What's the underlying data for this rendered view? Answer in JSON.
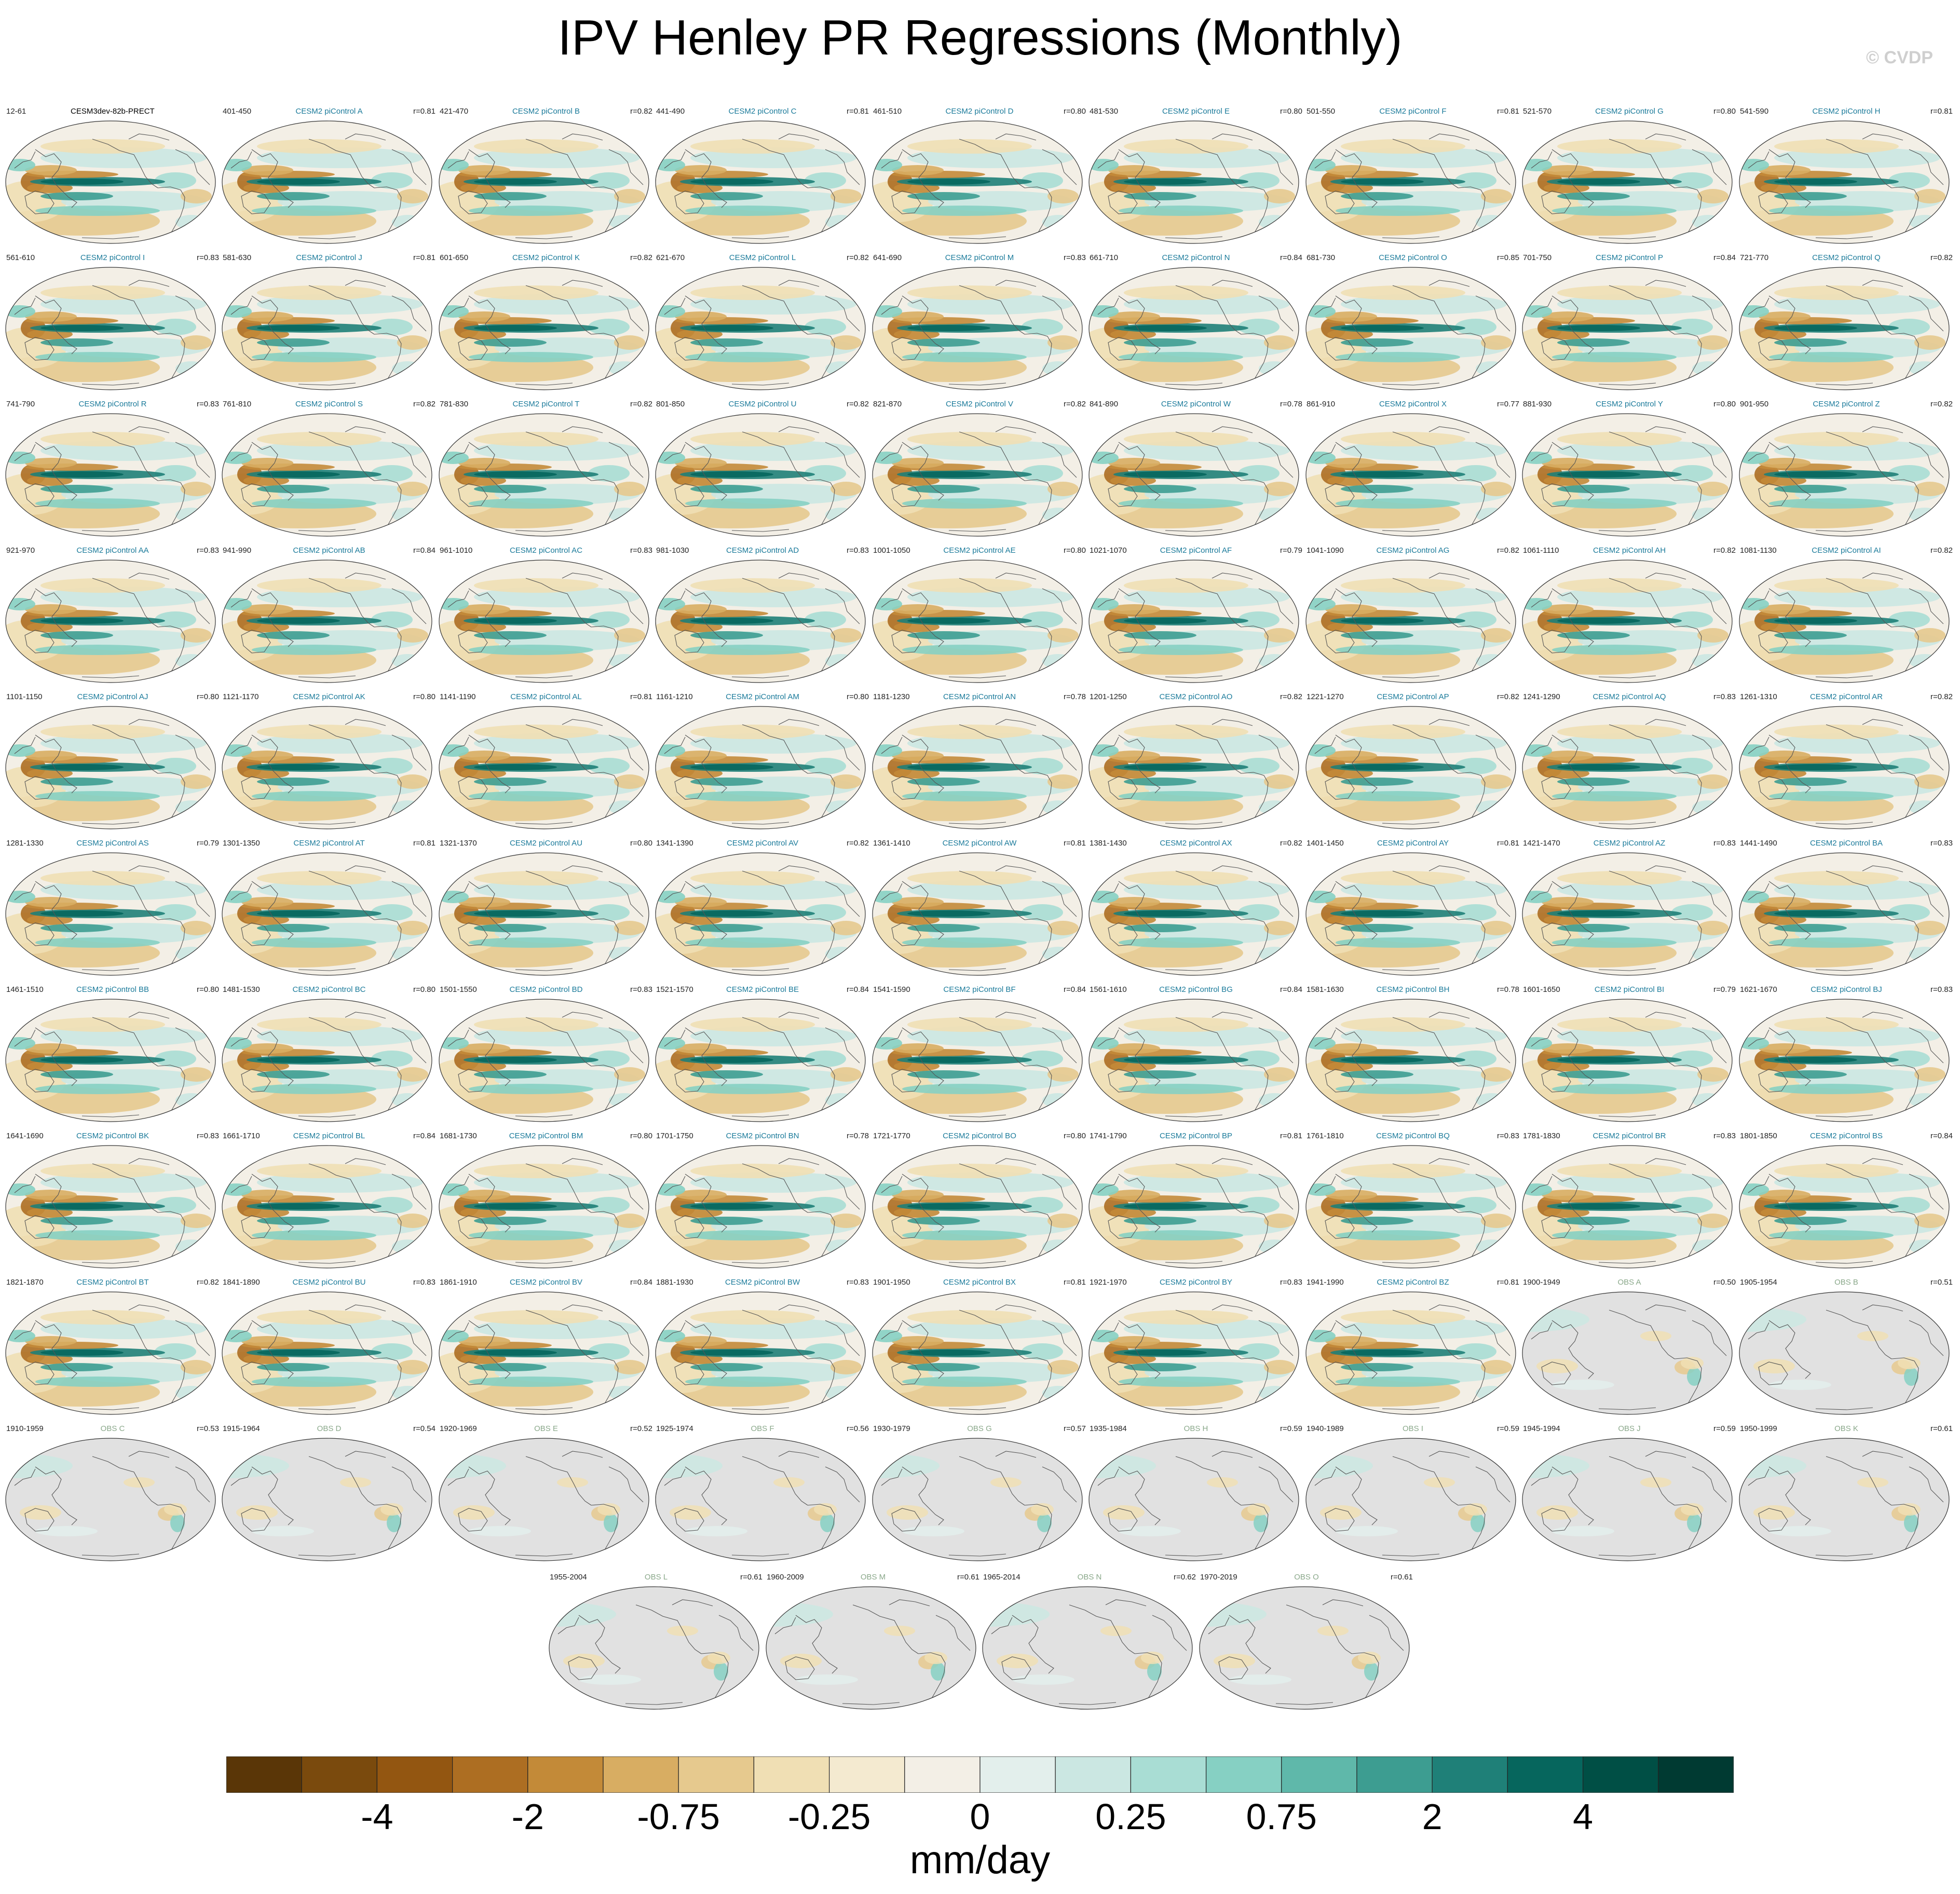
{
  "title": "IPV Henley PR Regressions (Monthly)",
  "copyright": "© CVDP",
  "panels": [
    {
      "name": "CESM3dev-82b-PRECT",
      "years": "12-61",
      "r": "",
      "kind": "base"
    },
    {
      "name": "CESM2 piControl A",
      "years": "401-450",
      "r": "r=0.81",
      "kind": "model"
    },
    {
      "name": "CESM2 piControl B",
      "years": "421-470",
      "r": "r=0.82",
      "kind": "model"
    },
    {
      "name": "CESM2 piControl C",
      "years": "441-490",
      "r": "r=0.81",
      "kind": "model"
    },
    {
      "name": "CESM2 piControl D",
      "years": "461-510",
      "r": "r=0.80",
      "kind": "model"
    },
    {
      "name": "CESM2 piControl E",
      "years": "481-530",
      "r": "r=0.80",
      "kind": "model"
    },
    {
      "name": "CESM2 piControl F",
      "years": "501-550",
      "r": "r=0.81",
      "kind": "model"
    },
    {
      "name": "CESM2 piControl G",
      "years": "521-570",
      "r": "r=0.80",
      "kind": "model"
    },
    {
      "name": "CESM2 piControl H",
      "years": "541-590",
      "r": "r=0.81",
      "kind": "model"
    },
    {
      "name": "CESM2 piControl I",
      "years": "561-610",
      "r": "r=0.83",
      "kind": "model"
    },
    {
      "name": "CESM2 piControl J",
      "years": "581-630",
      "r": "r=0.81",
      "kind": "model"
    },
    {
      "name": "CESM2 piControl K",
      "years": "601-650",
      "r": "r=0.82",
      "kind": "model"
    },
    {
      "name": "CESM2 piControl L",
      "years": "621-670",
      "r": "r=0.82",
      "kind": "model"
    },
    {
      "name": "CESM2 piControl M",
      "years": "641-690",
      "r": "r=0.83",
      "kind": "model"
    },
    {
      "name": "CESM2 piControl N",
      "years": "661-710",
      "r": "r=0.84",
      "kind": "model"
    },
    {
      "name": "CESM2 piControl O",
      "years": "681-730",
      "r": "r=0.85",
      "kind": "model"
    },
    {
      "name": "CESM2 piControl P",
      "years": "701-750",
      "r": "r=0.84",
      "kind": "model"
    },
    {
      "name": "CESM2 piControl Q",
      "years": "721-770",
      "r": "r=0.82",
      "kind": "model"
    },
    {
      "name": "CESM2 piControl R",
      "years": "741-790",
      "r": "r=0.83",
      "kind": "model"
    },
    {
      "name": "CESM2 piControl S",
      "years": "761-810",
      "r": "r=0.82",
      "kind": "model"
    },
    {
      "name": "CESM2 piControl T",
      "years": "781-830",
      "r": "r=0.82",
      "kind": "model"
    },
    {
      "name": "CESM2 piControl U",
      "years": "801-850",
      "r": "r=0.82",
      "kind": "model"
    },
    {
      "name": "CESM2 piControl V",
      "years": "821-870",
      "r": "r=0.82",
      "kind": "model"
    },
    {
      "name": "CESM2 piControl W",
      "years": "841-890",
      "r": "r=0.78",
      "kind": "model"
    },
    {
      "name": "CESM2 piControl X",
      "years": "861-910",
      "r": "r=0.77",
      "kind": "model"
    },
    {
      "name": "CESM2 piControl Y",
      "years": "881-930",
      "r": "r=0.80",
      "kind": "model"
    },
    {
      "name": "CESM2 piControl Z",
      "years": "901-950",
      "r": "r=0.82",
      "kind": "model"
    },
    {
      "name": "CESM2 piControl AA",
      "years": "921-970",
      "r": "r=0.83",
      "kind": "model"
    },
    {
      "name": "CESM2 piControl AB",
      "years": "941-990",
      "r": "r=0.84",
      "kind": "model"
    },
    {
      "name": "CESM2 piControl AC",
      "years": "961-1010",
      "r": "r=0.83",
      "kind": "model"
    },
    {
      "name": "CESM2 piControl AD",
      "years": "981-1030",
      "r": "r=0.83",
      "kind": "model"
    },
    {
      "name": "CESM2 piControl AE",
      "years": "1001-1050",
      "r": "r=0.80",
      "kind": "model"
    },
    {
      "name": "CESM2 piControl AF",
      "years": "1021-1070",
      "r": "r=0.79",
      "kind": "model"
    },
    {
      "name": "CESM2 piControl AG",
      "years": "1041-1090",
      "r": "r=0.82",
      "kind": "model"
    },
    {
      "name": "CESM2 piControl AH",
      "years": "1061-1110",
      "r": "r=0.82",
      "kind": "model"
    },
    {
      "name": "CESM2 piControl AI",
      "years": "1081-1130",
      "r": "r=0.82",
      "kind": "model"
    },
    {
      "name": "CESM2 piControl AJ",
      "years": "1101-1150",
      "r": "r=0.80",
      "kind": "model"
    },
    {
      "name": "CESM2 piControl AK",
      "years": "1121-1170",
      "r": "r=0.80",
      "kind": "model"
    },
    {
      "name": "CESM2 piControl AL",
      "years": "1141-1190",
      "r": "r=0.81",
      "kind": "model"
    },
    {
      "name": "CESM2 piControl AM",
      "years": "1161-1210",
      "r": "r=0.80",
      "kind": "model"
    },
    {
      "name": "CESM2 piControl AN",
      "years": "1181-1230",
      "r": "r=0.78",
      "kind": "model"
    },
    {
      "name": "CESM2 piControl AO",
      "years": "1201-1250",
      "r": "r=0.82",
      "kind": "model"
    },
    {
      "name": "CESM2 piControl AP",
      "years": "1221-1270",
      "r": "r=0.82",
      "kind": "model"
    },
    {
      "name": "CESM2 piControl AQ",
      "years": "1241-1290",
      "r": "r=0.83",
      "kind": "model"
    },
    {
      "name": "CESM2 piControl AR",
      "years": "1261-1310",
      "r": "r=0.82",
      "kind": "model"
    },
    {
      "name": "CESM2 piControl AS",
      "years": "1281-1330",
      "r": "r=0.79",
      "kind": "model"
    },
    {
      "name": "CESM2 piControl AT",
      "years": "1301-1350",
      "r": "r=0.81",
      "kind": "model"
    },
    {
      "name": "CESM2 piControl AU",
      "years": "1321-1370",
      "r": "r=0.80",
      "kind": "model"
    },
    {
      "name": "CESM2 piControl AV",
      "years": "1341-1390",
      "r": "r=0.82",
      "kind": "model"
    },
    {
      "name": "CESM2 piControl AW",
      "years": "1361-1410",
      "r": "r=0.81",
      "kind": "model"
    },
    {
      "name": "CESM2 piControl AX",
      "years": "1381-1430",
      "r": "r=0.82",
      "kind": "model"
    },
    {
      "name": "CESM2 piControl AY",
      "years": "1401-1450",
      "r": "r=0.81",
      "kind": "model"
    },
    {
      "name": "CESM2 piControl AZ",
      "years": "1421-1470",
      "r": "r=0.83",
      "kind": "model"
    },
    {
      "name": "CESM2 piControl BA",
      "years": "1441-1490",
      "r": "r=0.83",
      "kind": "model"
    },
    {
      "name": "CESM2 piControl BB",
      "years": "1461-1510",
      "r": "r=0.80",
      "kind": "model"
    },
    {
      "name": "CESM2 piControl BC",
      "years": "1481-1530",
      "r": "r=0.80",
      "kind": "model"
    },
    {
      "name": "CESM2 piControl BD",
      "years": "1501-1550",
      "r": "r=0.83",
      "kind": "model"
    },
    {
      "name": "CESM2 piControl BE",
      "years": "1521-1570",
      "r": "r=0.84",
      "kind": "model"
    },
    {
      "name": "CESM2 piControl BF",
      "years": "1541-1590",
      "r": "r=0.84",
      "kind": "model"
    },
    {
      "name": "CESM2 piControl BG",
      "years": "1561-1610",
      "r": "r=0.84",
      "kind": "model"
    },
    {
      "name": "CESM2 piControl BH",
      "years": "1581-1630",
      "r": "r=0.78",
      "kind": "model"
    },
    {
      "name": "CESM2 piControl BI",
      "years": "1601-1650",
      "r": "r=0.79",
      "kind": "model"
    },
    {
      "name": "CESM2 piControl BJ",
      "years": "1621-1670",
      "r": "r=0.83",
      "kind": "model"
    },
    {
      "name": "CESM2 piControl BK",
      "years": "1641-1690",
      "r": "r=0.83",
      "kind": "model"
    },
    {
      "name": "CESM2 piControl BL",
      "years": "1661-1710",
      "r": "r=0.84",
      "kind": "model"
    },
    {
      "name": "CESM2 piControl BM",
      "years": "1681-1730",
      "r": "r=0.80",
      "kind": "model"
    },
    {
      "name": "CESM2 piControl BN",
      "years": "1701-1750",
      "r": "r=0.78",
      "kind": "model"
    },
    {
      "name": "CESM2 piControl BO",
      "years": "1721-1770",
      "r": "r=0.80",
      "kind": "model"
    },
    {
      "name": "CESM2 piControl BP",
      "years": "1741-1790",
      "r": "r=0.81",
      "kind": "model"
    },
    {
      "name": "CESM2 piControl BQ",
      "years": "1761-1810",
      "r": "r=0.83",
      "kind": "model"
    },
    {
      "name": "CESM2 piControl BR",
      "years": "1781-1830",
      "r": "r=0.83",
      "kind": "model"
    },
    {
      "name": "CESM2 piControl BS",
      "years": "1801-1850",
      "r": "r=0.84",
      "kind": "model"
    },
    {
      "name": "CESM2 piControl BT",
      "years": "1821-1870",
      "r": "r=0.82",
      "kind": "model"
    },
    {
      "name": "CESM2 piControl BU",
      "years": "1841-1890",
      "r": "r=0.83",
      "kind": "model"
    },
    {
      "name": "CESM2 piControl BV",
      "years": "1861-1910",
      "r": "r=0.84",
      "kind": "model"
    },
    {
      "name": "CESM2 piControl BW",
      "years": "1881-1930",
      "r": "r=0.83",
      "kind": "model"
    },
    {
      "name": "CESM2 piControl BX",
      "years": "1901-1950",
      "r": "r=0.81",
      "kind": "model"
    },
    {
      "name": "CESM2 piControl BY",
      "years": "1921-1970",
      "r": "r=0.83",
      "kind": "model"
    },
    {
      "name": "CESM2 piControl BZ",
      "years": "1941-1990",
      "r": "r=0.81",
      "kind": "model"
    },
    {
      "name": "OBS A",
      "years": "1900-1949",
      "r": "r=0.50",
      "kind": "obs"
    },
    {
      "name": "OBS B",
      "years": "1905-1954",
      "r": "r=0.51",
      "kind": "obs"
    },
    {
      "name": "OBS C",
      "years": "1910-1959",
      "r": "r=0.53",
      "kind": "obs"
    },
    {
      "name": "OBS D",
      "years": "1915-1964",
      "r": "r=0.54",
      "kind": "obs"
    },
    {
      "name": "OBS E",
      "years": "1920-1969",
      "r": "r=0.52",
      "kind": "obs"
    },
    {
      "name": "OBS F",
      "years": "1925-1974",
      "r": "r=0.56",
      "kind": "obs"
    },
    {
      "name": "OBS G",
      "years": "1930-1979",
      "r": "r=0.57",
      "kind": "obs"
    },
    {
      "name": "OBS H",
      "years": "1935-1984",
      "r": "r=0.59",
      "kind": "obs"
    },
    {
      "name": "OBS I",
      "years": "1940-1989",
      "r": "r=0.59",
      "kind": "obs"
    },
    {
      "name": "OBS J",
      "years": "1945-1994",
      "r": "r=0.59",
      "kind": "obs"
    },
    {
      "name": "OBS K",
      "years": "1950-1999",
      "r": "r=0.61",
      "kind": "obs"
    },
    {
      "name": "OBS L",
      "years": "1955-2004",
      "r": "r=0.61",
      "kind": "obs"
    },
    {
      "name": "OBS M",
      "years": "1960-2009",
      "r": "r=0.61",
      "kind": "obs"
    },
    {
      "name": "OBS N",
      "years": "1965-2014",
      "r": "r=0.62",
      "kind": "obs"
    },
    {
      "name": "OBS O",
      "years": "1970-2019",
      "r": "r=0.61",
      "kind": "obs"
    }
  ],
  "colorbar": {
    "colors": [
      "#5a3607",
      "#7a4a0d",
      "#935611",
      "#ad6e22",
      "#c38a38",
      "#d8ad62",
      "#e6c98e",
      "#f0dfb4",
      "#f4ead0",
      "#f3efe6",
      "#e3efec",
      "#cbe7e2",
      "#a9ddd4",
      "#86d0c3",
      "#5fb8aa",
      "#3d9d91",
      "#1f8078",
      "#06665d",
      "#004f45",
      "#003a32"
    ],
    "tick_labels": [
      "-4",
      "-2",
      "-0.75",
      "-0.25",
      "0",
      "0.25",
      "0.75",
      "2",
      "4"
    ],
    "units": "mm/day"
  },
  "palette": {
    "model_name": "#1a7a9a",
    "obs_name": "#8aa88a",
    "land_obs": "#e1e1e1",
    "ocean_bg": "#f3efe6"
  }
}
